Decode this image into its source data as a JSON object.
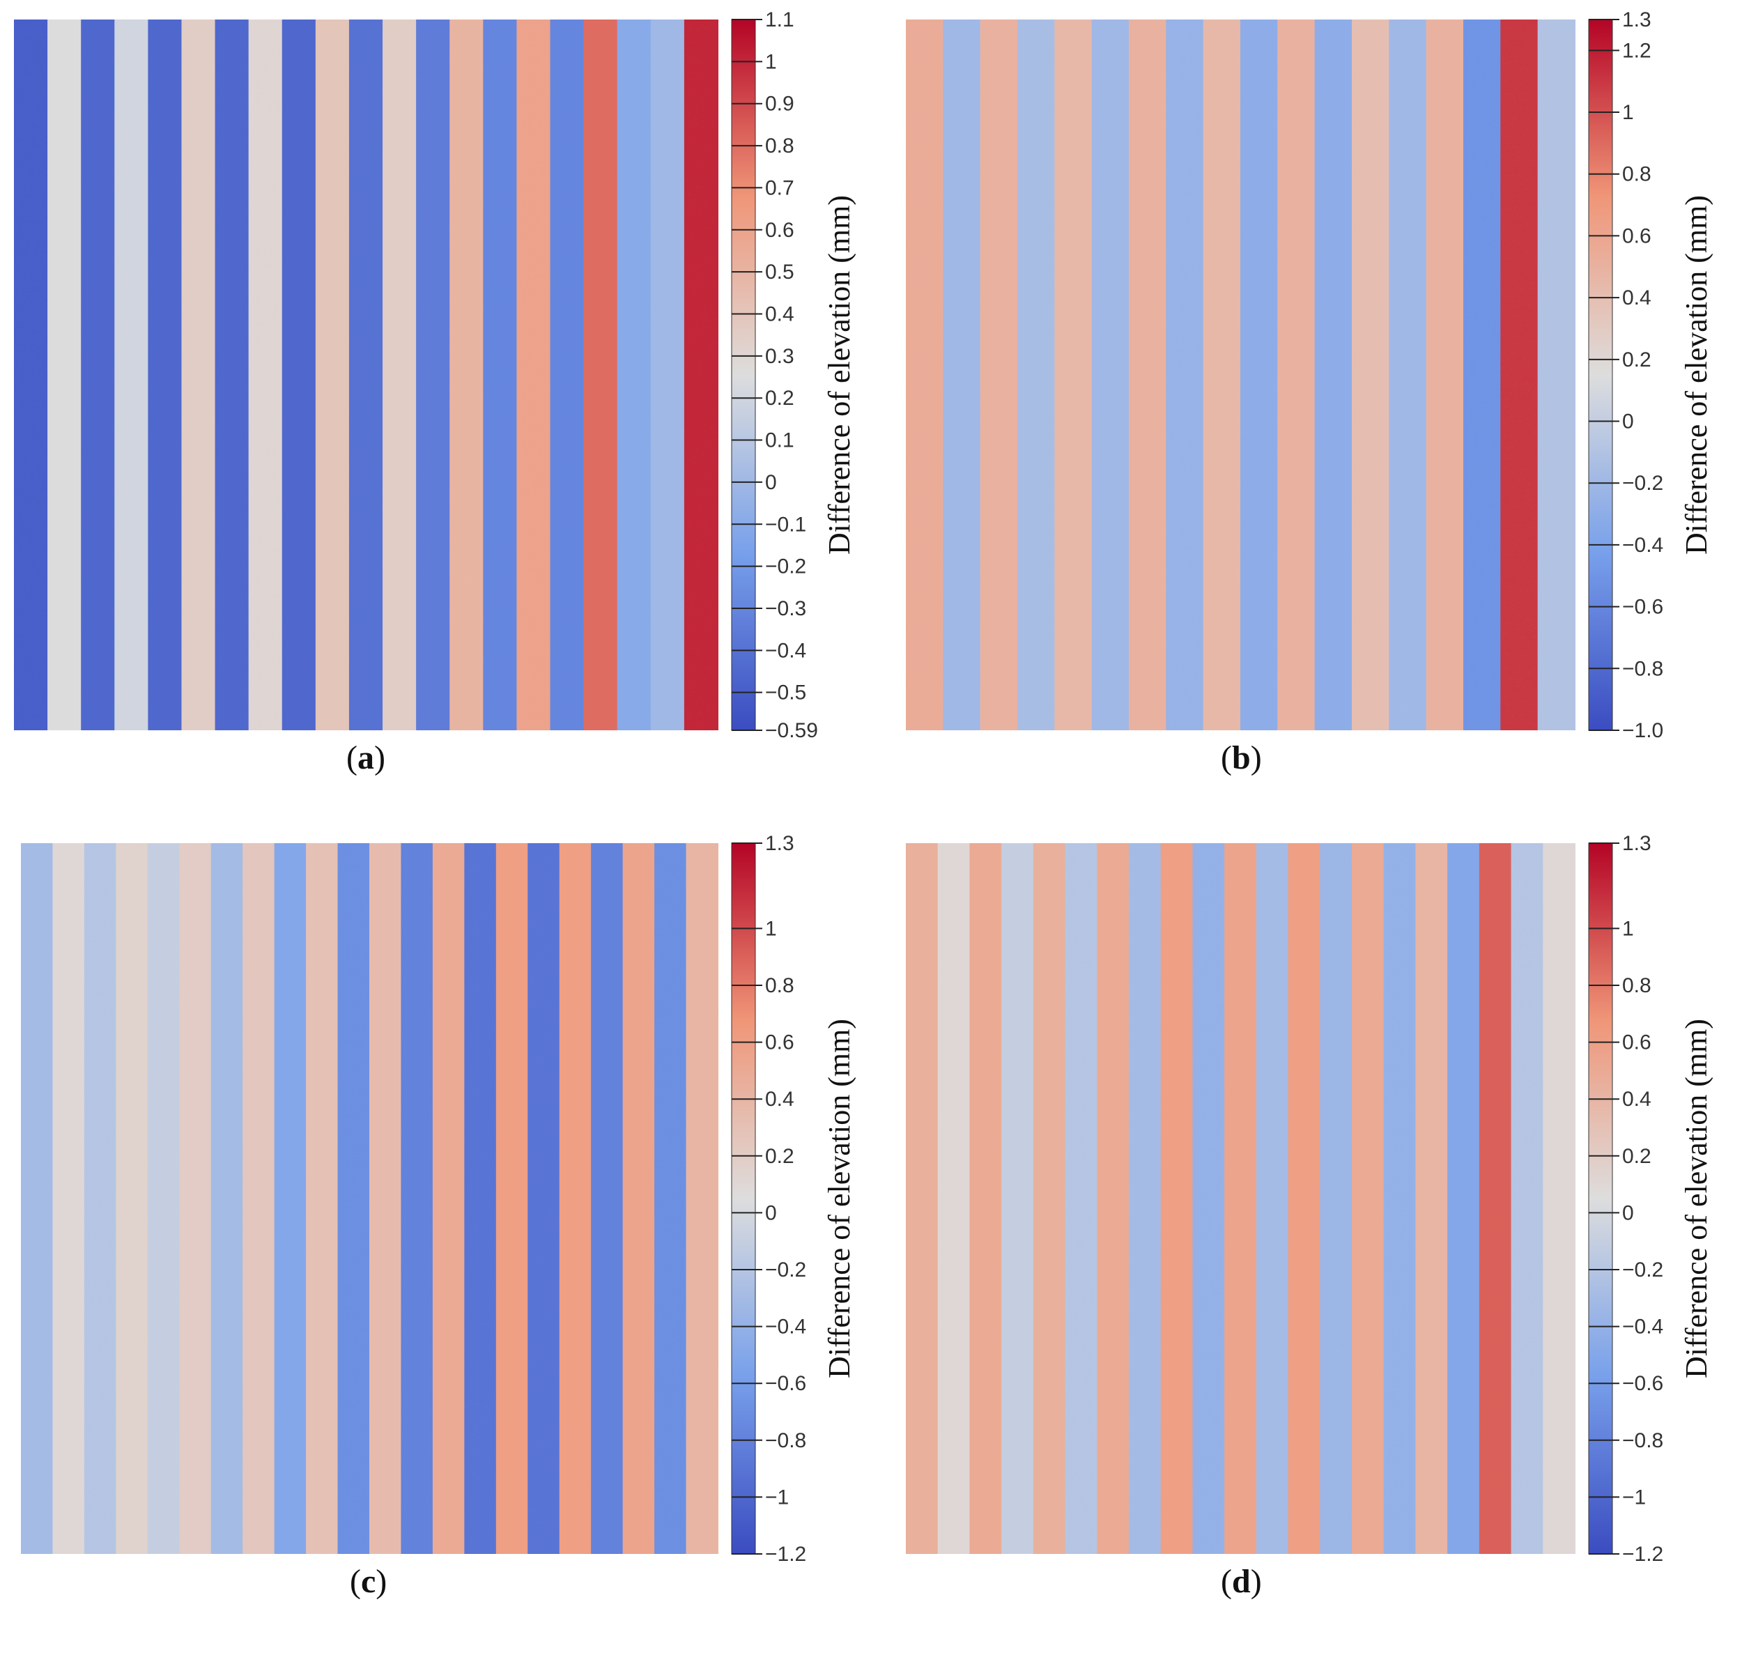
{
  "chart_data": [
    {
      "type": "heatmap",
      "panel": "a",
      "caption_letter": "a",
      "colorbar": {
        "title": "Difference of elevation (mm)",
        "range": [
          -0.59,
          1.1
        ],
        "ticks": [
          1.1,
          1,
          0.9,
          0.8,
          0.7,
          0.6,
          0.5,
          0.4,
          0.3,
          0.2,
          0.1,
          0,
          -0.1,
          -0.2,
          -0.3,
          -0.4,
          -0.5,
          -0.59
        ],
        "tick_labels": [
          "1.1",
          "1",
          "0.9",
          "0.8",
          "0.7",
          "0.6",
          "0.5",
          "0.4",
          "0.3",
          "0.2",
          "0.1",
          "0",
          "−0.1",
          "−0.2",
          "−0.3",
          "−0.4",
          "−0.5",
          "−0.59"
        ]
      },
      "stripes": [
        -0.5,
        0.25,
        -0.45,
        0.2,
        -0.45,
        0.35,
        -0.45,
        0.3,
        -0.45,
        0.4,
        -0.4,
        0.35,
        -0.35,
        0.5,
        -0.3,
        0.6,
        -0.3,
        0.8,
        -0.1,
        0.0,
        1.0
      ]
    },
    {
      "type": "heatmap",
      "panel": "b",
      "caption_letter": "b",
      "colorbar": {
        "title": "Difference of elevation (mm)",
        "range": [
          -1.0,
          1.3
        ],
        "ticks": [
          1.3,
          1.2,
          1,
          0.8,
          0.6,
          0.4,
          0.2,
          0,
          -0.2,
          -0.4,
          -0.6,
          -0.8,
          -1.0
        ],
        "tick_labels": [
          "1.3",
          "1.2",
          "1",
          "0.8",
          "0.6",
          "0.4",
          "0.2",
          "0",
          "−0.2",
          "−0.4",
          "−0.6",
          "−0.8",
          "−1.0"
        ]
      },
      "stripes": [
        0.55,
        -0.2,
        0.5,
        -0.15,
        0.45,
        -0.2,
        0.5,
        -0.25,
        0.45,
        -0.3,
        0.5,
        -0.3,
        0.4,
        -0.2,
        0.5,
        -0.5,
        1.1,
        -0.1
      ]
    },
    {
      "type": "heatmap",
      "panel": "c",
      "caption_letter": "c",
      "colorbar": {
        "title": "Difference of elevation (mm)",
        "range": [
          -1.2,
          1.3
        ],
        "ticks": [
          1.3,
          1,
          0.8,
          0.6,
          0.4,
          0.2,
          0,
          -0.2,
          -0.4,
          -0.6,
          -0.8,
          -1,
          -1.2
        ],
        "tick_labels": [
          "1.3",
          "1",
          "0.8",
          "0.6",
          "0.4",
          "0.2",
          "0",
          "−0.2",
          "−0.4",
          "−0.6",
          "−0.8",
          "−1",
          "−1.2"
        ]
      },
      "stripes": [
        -0.3,
        0.1,
        -0.2,
        0.15,
        -0.1,
        0.2,
        -0.3,
        0.25,
        -0.5,
        0.3,
        -0.7,
        0.35,
        -0.8,
        0.5,
        -0.9,
        0.6,
        -0.9,
        0.6,
        -0.8,
        0.55,
        -0.7,
        0.4
      ]
    },
    {
      "type": "heatmap",
      "panel": "d",
      "caption_letter": "d",
      "colorbar": {
        "title": "Difference of elevation (mm)",
        "range": [
          -1.2,
          1.3
        ],
        "ticks": [
          1.3,
          1,
          0.8,
          0.6,
          0.4,
          0.2,
          0,
          -0.2,
          -0.4,
          -0.6,
          -0.8,
          -1,
          -1.2
        ],
        "tick_labels": [
          "1.3",
          "1",
          "0.8",
          "0.6",
          "0.4",
          "0.2",
          "0",
          "−0.2",
          "−0.4",
          "−0.6",
          "−0.8",
          "−1",
          "−1.2"
        ]
      },
      "stripes": [
        0.45,
        0.1,
        0.5,
        -0.1,
        0.45,
        -0.2,
        0.5,
        -0.3,
        0.6,
        -0.4,
        0.55,
        -0.3,
        0.6,
        -0.35,
        0.5,
        -0.4,
        0.4,
        -0.5,
        0.9,
        -0.2,
        0.1
      ]
    }
  ]
}
